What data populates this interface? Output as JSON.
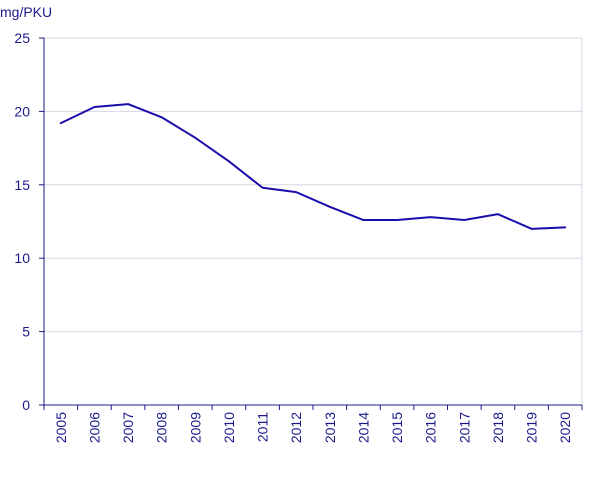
{
  "chart_data": {
    "type": "line",
    "ylabel": "mg/PKU",
    "ylim": [
      0,
      25
    ],
    "yticks": [
      0,
      5,
      10,
      15,
      20,
      25
    ],
    "grid": true,
    "categories": [
      "2005",
      "2006",
      "2007",
      "2008",
      "2009",
      "2010",
      "2011",
      "2012",
      "2013",
      "2014",
      "2015",
      "2016",
      "2017",
      "2018",
      "2019",
      "2020"
    ],
    "series": [
      {
        "values": [
          19.2,
          20.3,
          20.5,
          19.6,
          18.2,
          16.6,
          14.8,
          14.5,
          13.5,
          12.6,
          12.6,
          12.8,
          12.6,
          13.0,
          12.0,
          12.1
        ],
        "color": "#1a0dab"
      }
    ]
  }
}
